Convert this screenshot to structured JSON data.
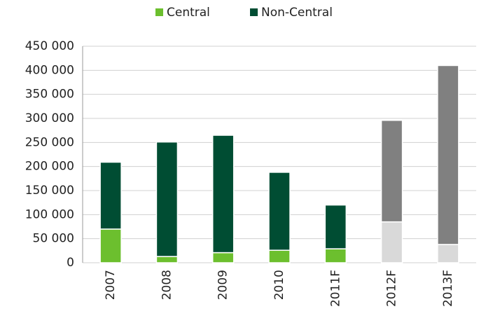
{
  "chart_data": {
    "type": "stacked_bar",
    "categories": [
      "2007",
      "2008",
      "2009",
      "2010",
      "2011F",
      "2012F",
      "2013F"
    ],
    "series": [
      {
        "name": "Central",
        "color": "#6cbf2e",
        "values": [
          70000,
          13000,
          21000,
          26000,
          29000,
          85000,
          38000
        ],
        "point_colors": [
          "#6cbf2e",
          "#6cbf2e",
          "#6cbf2e",
          "#6cbf2e",
          "#6cbf2e",
          "#d9d9d9",
          "#d9d9d9"
        ]
      },
      {
        "name": "Non-Central",
        "color": "#004d33",
        "values": [
          139000,
          238000,
          244000,
          162000,
          91000,
          211000,
          372000
        ],
        "point_colors": [
          "#004d33",
          "#004d33",
          "#004d33",
          "#004d33",
          "#004d33",
          "#808080",
          "#808080"
        ]
      }
    ],
    "ylim": [
      0,
      450000
    ],
    "yticks": [
      0,
      {
        "value": 50000,
        "label": "50 000"
      },
      {
        "value": 100000,
        "label": "100 000"
      },
      {
        "value": 150000,
        "label": "150 000"
      },
      {
        "value": 200000,
        "label": "200 000"
      },
      {
        "value": 250000,
        "label": "250 000"
      },
      {
        "value": 300000,
        "label": "300 000"
      },
      {
        "value": 350000,
        "label": "350 000"
      },
      {
        "value": 400000,
        "label": "400 000"
      },
      {
        "value": 450000,
        "label": "450 000"
      }
    ],
    "grid": true,
    "legend": "top"
  }
}
